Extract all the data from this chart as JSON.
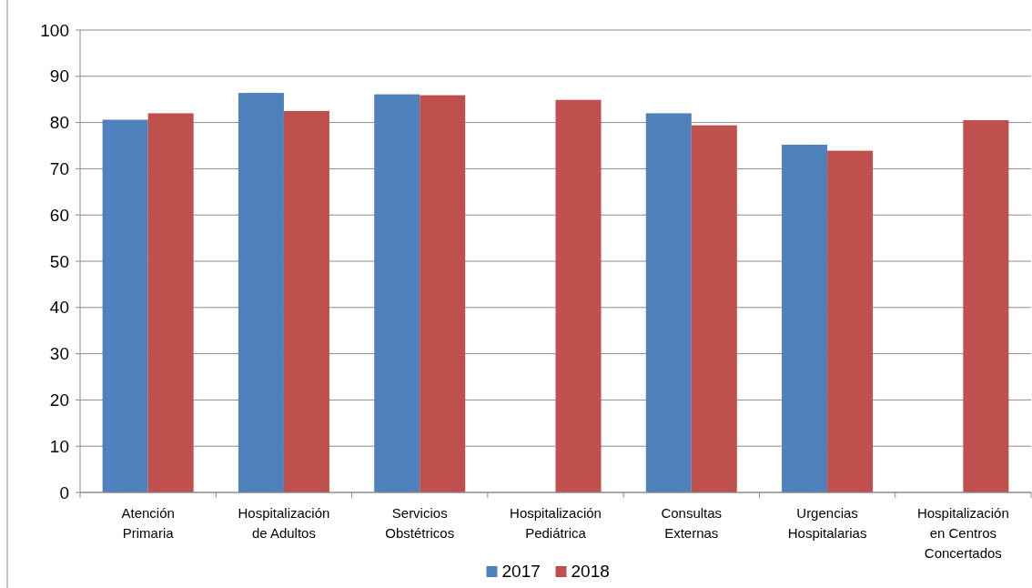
{
  "chart_data": {
    "type": "bar",
    "categories": [
      "Atención Primaria",
      "Hospitalización de Adultos",
      "Servicios Obstétricos",
      "Hospitalización Pediátrica",
      "Consultas Externas",
      "Urgencias Hospitalarias",
      "Hospitalización en Centros Concertados"
    ],
    "series": [
      {
        "name": "2017",
        "color": "#4f81bd",
        "values": [
          80.6,
          86.4,
          86.1,
          null,
          82.0,
          75.2,
          null
        ]
      },
      {
        "name": "2018",
        "color": "#c0504d",
        "values": [
          82.0,
          82.5,
          85.9,
          84.9,
          79.4,
          73.9,
          80.5
        ]
      }
    ],
    "ylim": [
      0,
      100
    ],
    "yticks": [
      0,
      10,
      20,
      30,
      40,
      50,
      60,
      70,
      80,
      90,
      100
    ],
    "grid": "y",
    "legend": "bottom"
  }
}
